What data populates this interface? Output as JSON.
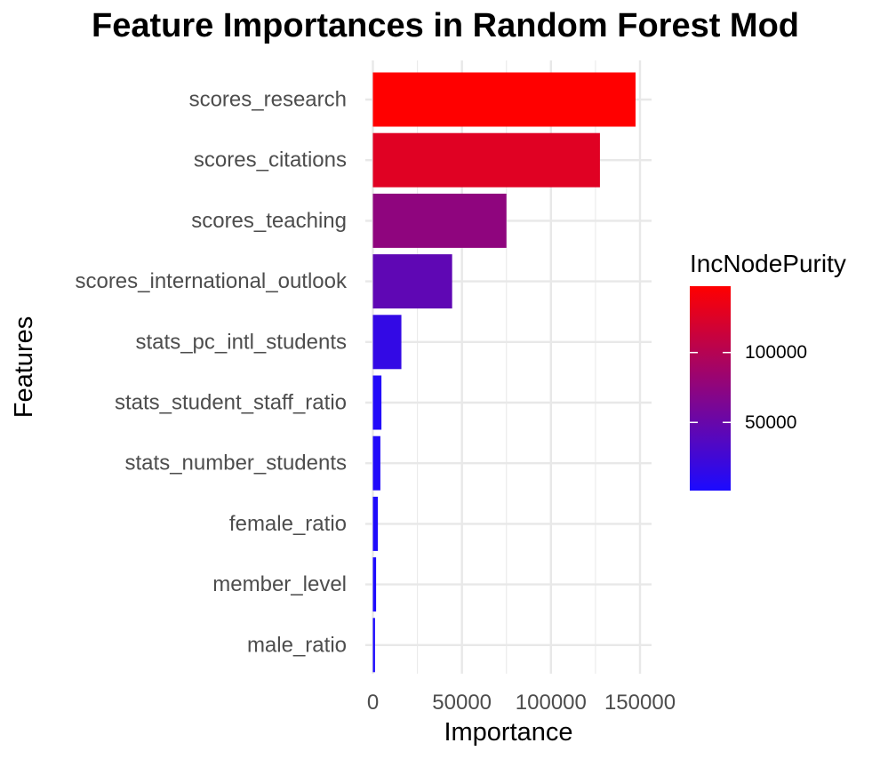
{
  "chart_data": {
    "type": "bar",
    "orientation": "horizontal",
    "title": "Feature Importances in Random Forest Mod",
    "xlabel": "Importance",
    "ylabel": "Features",
    "categories": [
      "scores_research",
      "scores_citations",
      "scores_teaching",
      "scores_international_outlook",
      "stats_pc_intl_students",
      "stats_student_staff_ratio",
      "stats_number_students",
      "female_ratio",
      "member_level",
      "male_ratio"
    ],
    "values": [
      147500,
      127500,
      75000,
      44500,
      16000,
      4800,
      4200,
      2800,
      1800,
      1200
    ],
    "xlim": [
      0,
      154000
    ],
    "x_ticks": [
      0,
      50000,
      100000,
      150000
    ],
    "x_tick_labels": [
      "0",
      "50000",
      "100000",
      "150000"
    ],
    "grid": true,
    "legend": {
      "title": "IncNodePurity",
      "placement": "right",
      "type": "colorbar",
      "range": [
        1200,
        147500
      ],
      "ticks": [
        50000,
        100000
      ],
      "tick_labels": [
        "50000",
        "100000"
      ],
      "low_color": "#1c0aff",
      "high_color": "#ff0000"
    }
  }
}
